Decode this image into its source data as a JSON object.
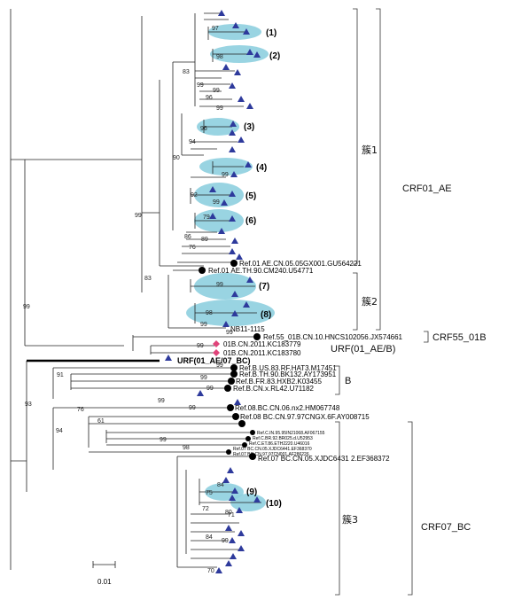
{
  "tree": {
    "bootstrap_values": [
      "97",
      "98",
      "83",
      "99",
      "99",
      "96",
      "99",
      "94",
      "90",
      "96",
      "99",
      "92",
      "99",
      "79",
      "86",
      "89",
      "76",
      "99",
      "83",
      "99",
      "98",
      "99",
      "99",
      "99",
      "99",
      "99",
      "91",
      "99",
      "93",
      "99",
      "99",
      "76",
      "99",
      "61",
      "94",
      "99",
      "98",
      "84",
      "75",
      "72",
      "80",
      "71",
      "84",
      "99",
      "70"
    ],
    "clusters": [
      "(1)",
      "(2)",
      "(3)",
      "(4)",
      "(5)",
      "(6)",
      "(7)",
      "(8)",
      "(9)",
      "(10)"
    ],
    "groups": {
      "crf01": "CRF01_AE",
      "crf55": "CRF55_01B",
      "urf_ab": "URF(01_AE/B)",
      "b": "B",
      "crf07": "CRF07_BC",
      "sub1": "簇1",
      "sub2": "簇2",
      "sub3": "簇3"
    },
    "references": {
      "r1": "Ref.01 AE.CN.05.05GX001.GU564221",
      "r2": "Ref.01 AE.TH.90.CM240.U54771",
      "r3": "NB11-1115",
      "r4": "Ref.55_01B.CN.10.HNCS102056.JX574661",
      "r5": "01B.CN.2011.KC183779",
      "r6": "01B.CN.2011.KC183780",
      "r7": "URF(01_AE/07_BC)",
      "r8": "Ref.B.US.83.RF.HAT3.M17451",
      "r9": "Ref.B.TH.90.BK132.AY173951",
      "r10": "Ref.B.FR.83.HXB2.K03455",
      "r11": "Ref.B.CN.x.RL42.U71182",
      "r12": "Ref.08.BC.CN.06.nx2.HM067748",
      "r13": "Ref.08 BC.CN.97.97CNGX.6F.AY008715",
      "r14": "Ref.C.IN.95.95IN21068.AF067155",
      "r15": "Ref.C.BR.92.BR025.d.U52953",
      "r16": "Ref.C.ET.86.ETH2220.U46016",
      "r17": "Ref.07 BC.CN.05.XJDC6441.EF368370",
      "r18": "Ref.07 BC.CN.97.97CN001.AF286226",
      "r19": "Ref.07 BC.CN.05.XJDC6431 2.EF368372"
    },
    "scale_label": "0.01",
    "colors": {
      "triangle": "#2e3a9c",
      "circle": "#000000",
      "diamond": "#e0447a",
      "highlight": "#8ecfdf"
    }
  }
}
